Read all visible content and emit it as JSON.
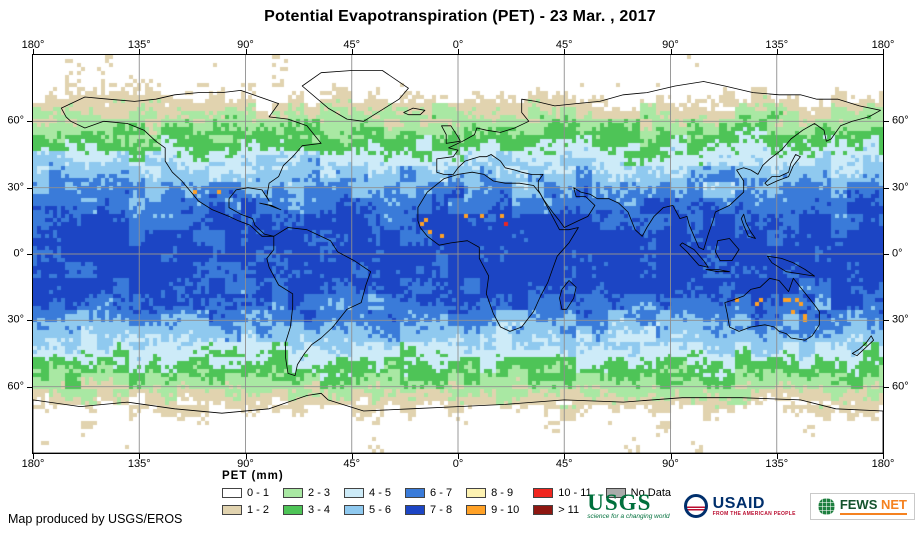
{
  "title": "Potential Evapotranspiration (PET) - 23 Mar. , 2017",
  "axis": {
    "lon_labels": [
      "180°",
      "135°",
      "90°",
      "45°",
      "0°",
      "45°",
      "90°",
      "135°",
      "180°"
    ],
    "lon_values": [
      -180,
      -135,
      -90,
      -45,
      0,
      45,
      90,
      135,
      180
    ],
    "lat_labels": [
      "60°",
      "30°",
      "0°",
      "30°",
      "60°"
    ],
    "lat_values": [
      60,
      30,
      0,
      -30,
      -60
    ]
  },
  "legend": {
    "title": "PET (mm)",
    "columns": [
      {
        "top": {
          "label": "0 - 1",
          "color": "#FFFFFF"
        },
        "bottom": {
          "label": "1 - 2",
          "color": "#E1D3AF"
        }
      },
      {
        "top": {
          "label": "2 - 3",
          "color": "#A9E8A3"
        },
        "bottom": {
          "label": "3 - 4",
          "color": "#4EC457"
        }
      },
      {
        "top": {
          "label": "4 - 5",
          "color": "#CDEBF8"
        },
        "bottom": {
          "label": "5 - 6",
          "color": "#8FC9EF"
        }
      },
      {
        "top": {
          "label": "6 - 7",
          "color": "#3A7BD9"
        },
        "bottom": {
          "label": "7 - 8",
          "color": "#1C45C4"
        }
      },
      {
        "top": {
          "label": "8 - 9",
          "color": "#FDF2B2"
        },
        "bottom": {
          "label": "9 - 10",
          "color": "#FFA126"
        }
      },
      {
        "top": {
          "label": "10 - 11",
          "color": "#F0261F"
        },
        "bottom": {
          "label": "> 11",
          "color": "#8E1711"
        }
      },
      {
        "top": {
          "label": "No Data",
          "color": "#ABABAB"
        },
        "bottom": null
      }
    ]
  },
  "map": {
    "palette": [
      "#FFFFFF",
      "#E1D3AF",
      "#A9E8A3",
      "#4EC457",
      "#CDEBF8",
      "#8FC9EF",
      "#3A7BD9",
      "#1C45C4",
      "#FDF2B2",
      "#FFA126",
      "#F0261F",
      "#8E1711"
    ],
    "no_data_color": "#ABABAB",
    "grid_color": "#8f8f8f",
    "coast_color": "#000000"
  },
  "credit": "Map produced by USGS/EROS",
  "logos": {
    "usgs": {
      "name": "USGS",
      "tagline": "science for a changing world"
    },
    "usaid": {
      "name": "USAID",
      "tagline": "FROM THE AMERICAN PEOPLE"
    },
    "fewsnet": {
      "name_left": "FEWS",
      "name_right": "NET"
    }
  }
}
